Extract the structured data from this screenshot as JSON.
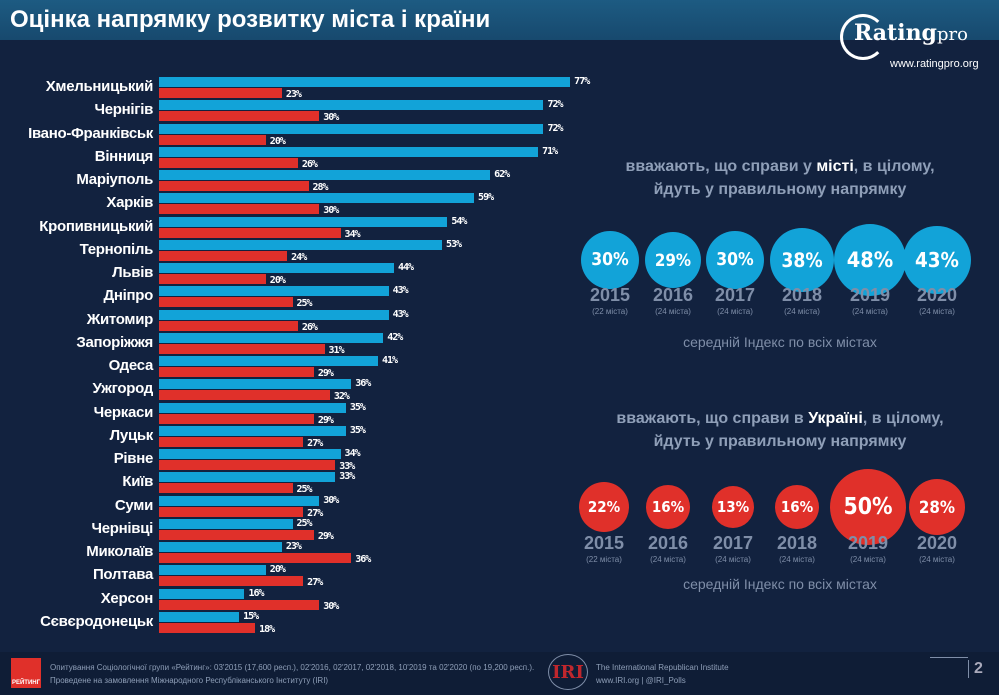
{
  "title": "Оцінка напрямку розвитку міста і країни",
  "logo": {
    "name": "Ratingpro",
    "url": "www.ratingpro.org"
  },
  "colors": {
    "city": "#12a3d8",
    "country": "#e0302a",
    "background": "#12223f"
  },
  "chart_data": [
    {
      "type": "bar",
      "orientation": "horizontal",
      "categories": [
        "Хмельницький",
        "Чернігів",
        "Івано-Франківськ",
        "Вінниця",
        "Маріуполь",
        "Харків",
        "Кропивницький",
        "Тернопіль",
        "Львів",
        "Дніпро",
        "Житомир",
        "Запоріжжя",
        "Одеса",
        "Ужгород",
        "Черкаси",
        "Луцьк",
        "Рівне",
        "Київ",
        "Суми",
        "Чернівці",
        "Миколаїв",
        "Полтава",
        "Херсон",
        "Сєвєродонецьк"
      ],
      "series": [
        {
          "color": "#12a3d8",
          "values": [
            77,
            72,
            72,
            71,
            62,
            59,
            54,
            53,
            44,
            43,
            43,
            42,
            41,
            36,
            35,
            35,
            34,
            33,
            30,
            25,
            23,
            20,
            16,
            15
          ]
        },
        {
          "color": "#e0302a",
          "values": [
            23,
            30,
            20,
            26,
            28,
            30,
            34,
            24,
            20,
            25,
            26,
            31,
            29,
            32,
            29,
            27,
            33,
            25,
            27,
            29,
            36,
            27,
            30,
            18
          ]
        }
      ],
      "unit": "%"
    },
    {
      "type": "bubble",
      "title_parts": [
        "вважають, що справи у ",
        "місті",
        ", в цілому,",
        "йдуть у правильному напрямку"
      ],
      "years": [
        "2015",
        "2016",
        "2017",
        "2018",
        "2019",
        "2020"
      ],
      "sublabels": [
        "(22 міста)",
        "(24 міста)",
        "(24 міста)",
        "(24 міста)",
        "(24 міста)",
        "(24 міста)"
      ],
      "values": [
        30,
        29,
        30,
        38,
        48,
        43
      ],
      "color": "#12a3d8",
      "caption": "середній Індекс по всіх містах"
    },
    {
      "type": "bubble",
      "title_parts": [
        "вважають, що справи в ",
        "Україні",
        ", в цілому,",
        "йдуть у правильному напрямку"
      ],
      "years": [
        "2015",
        "2016",
        "2017",
        "2018",
        "2019",
        "2020"
      ],
      "sublabels": [
        "(22 міста)",
        "(24 міста)",
        "(24 міста)",
        "(24 міста)",
        "(24 міста)",
        "(24 міста)"
      ],
      "values": [
        22,
        16,
        13,
        16,
        50,
        28
      ],
      "color": "#e0302a",
      "caption": "середній Індекс по всіх містах"
    }
  ],
  "footer": {
    "rating_logo": "РЕЙТИНГ",
    "line1": "Опитування Соціологічної групи «Рейтинг»: 03'2015 (17,600 респ.), 02'2016, 02'2017, 02'2018, 10'2019 та 02'2020 (по 19,200 респ.).",
    "line2": "Проведене на замовлення Міжнародного Республіканського Інституту (IRI)",
    "iri_logo": "IRI",
    "iri_name": "The International Republican Institute",
    "iri_links": "www.IRI.org | @IRI_Polls",
    "page": "2"
  }
}
